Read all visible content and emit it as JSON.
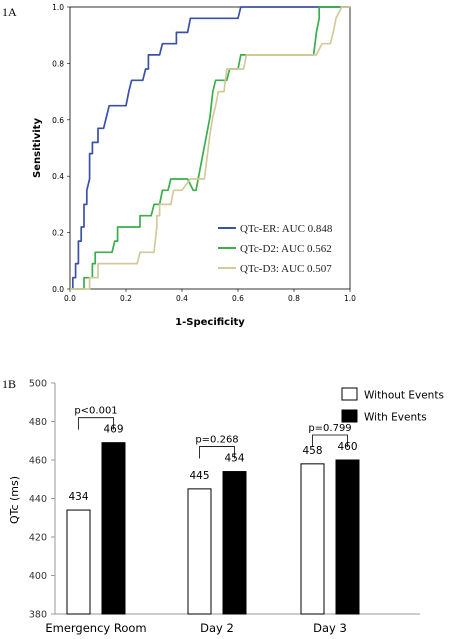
{
  "chart_data": [
    {
      "panel": "1A",
      "type": "line",
      "xlabel": "1-Specificity",
      "ylabel": "Sensitivity",
      "xlim": [
        0,
        1
      ],
      "ylim": [
        0,
        1
      ],
      "xticks": [
        "0.0",
        "0.2",
        "0.4",
        "0.6",
        "0.8",
        "1.0"
      ],
      "yticks": [
        "0.0",
        "0.2",
        "0.4",
        "0.6",
        "0.8",
        "1.0"
      ],
      "legend_position": "bottom-right",
      "series": [
        {
          "name": "QTc-ER: AUC 0.848",
          "color": "#3b50a8",
          "points": [
            [
              0,
              0
            ],
            [
              0.01,
              0
            ],
            [
              0.01,
              0.04
            ],
            [
              0.02,
              0.04
            ],
            [
              0.02,
              0.09
            ],
            [
              0.03,
              0.09
            ],
            [
              0.03,
              0.17
            ],
            [
              0.04,
              0.17
            ],
            [
              0.04,
              0.22
            ],
            [
              0.05,
              0.22
            ],
            [
              0.05,
              0.3
            ],
            [
              0.06,
              0.3
            ],
            [
              0.06,
              0.35
            ],
            [
              0.07,
              0.39
            ],
            [
              0.07,
              0.48
            ],
            [
              0.08,
              0.48
            ],
            [
              0.08,
              0.52
            ],
            [
              0.1,
              0.52
            ],
            [
              0.1,
              0.57
            ],
            [
              0.12,
              0.57
            ],
            [
              0.13,
              0.61
            ],
            [
              0.14,
              0.65
            ],
            [
              0.2,
              0.65
            ],
            [
              0.21,
              0.7
            ],
            [
              0.22,
              0.74
            ],
            [
              0.26,
              0.74
            ],
            [
              0.27,
              0.78
            ],
            [
              0.28,
              0.78
            ],
            [
              0.28,
              0.83
            ],
            [
              0.32,
              0.83
            ],
            [
              0.33,
              0.87
            ],
            [
              0.38,
              0.87
            ],
            [
              0.38,
              0.91
            ],
            [
              0.42,
              0.91
            ],
            [
              0.43,
              0.96
            ],
            [
              0.6,
              0.96
            ],
            [
              0.61,
              1.0
            ],
            [
              1.0,
              1.0
            ]
          ]
        },
        {
          "name": "QTc-D2: AUC 0.562",
          "color": "#3aae4a",
          "points": [
            [
              0,
              0
            ],
            [
              0.05,
              0
            ],
            [
              0.05,
              0.04
            ],
            [
              0.08,
              0.04
            ],
            [
              0.08,
              0.09
            ],
            [
              0.09,
              0.09
            ],
            [
              0.09,
              0.13
            ],
            [
              0.15,
              0.13
            ],
            [
              0.16,
              0.17
            ],
            [
              0.17,
              0.17
            ],
            [
              0.17,
              0.22
            ],
            [
              0.25,
              0.22
            ],
            [
              0.25,
              0.26
            ],
            [
              0.29,
              0.26
            ],
            [
              0.3,
              0.3
            ],
            [
              0.32,
              0.3
            ],
            [
              0.33,
              0.35
            ],
            [
              0.35,
              0.35
            ],
            [
              0.36,
              0.39
            ],
            [
              0.42,
              0.39
            ],
            [
              0.44,
              0.35
            ],
            [
              0.45,
              0.35
            ],
            [
              0.5,
              0.61
            ],
            [
              0.51,
              0.7
            ],
            [
              0.52,
              0.74
            ],
            [
              0.56,
              0.74
            ],
            [
              0.57,
              0.78
            ],
            [
              0.6,
              0.78
            ],
            [
              0.61,
              0.83
            ],
            [
              0.87,
              0.83
            ],
            [
              0.88,
              0.91
            ],
            [
              0.89,
              0.96
            ],
            [
              0.89,
              1.0
            ],
            [
              1.0,
              1.0
            ]
          ]
        },
        {
          "name": "QTc-D3: AUC 0.507",
          "color": "#d4c99a",
          "points": [
            [
              0,
              0
            ],
            [
              0.07,
              0
            ],
            [
              0.07,
              0.04
            ],
            [
              0.1,
              0.04
            ],
            [
              0.1,
              0.09
            ],
            [
              0.24,
              0.09
            ],
            [
              0.25,
              0.13
            ],
            [
              0.3,
              0.13
            ],
            [
              0.31,
              0.22
            ],
            [
              0.31,
              0.26
            ],
            [
              0.32,
              0.26
            ],
            [
              0.32,
              0.3
            ],
            [
              0.36,
              0.3
            ],
            [
              0.37,
              0.35
            ],
            [
              0.4,
              0.35
            ],
            [
              0.43,
              0.39
            ],
            [
              0.48,
              0.39
            ],
            [
              0.5,
              0.55
            ],
            [
              0.51,
              0.61
            ],
            [
              0.52,
              0.65
            ],
            [
              0.53,
              0.7
            ],
            [
              0.55,
              0.7
            ],
            [
              0.56,
              0.78
            ],
            [
              0.62,
              0.78
            ],
            [
              0.63,
              0.83
            ],
            [
              0.88,
              0.83
            ],
            [
              0.9,
              0.87
            ],
            [
              0.93,
              0.87
            ],
            [
              0.94,
              0.91
            ],
            [
              0.95,
              0.96
            ],
            [
              0.97,
              1.0
            ],
            [
              1.0,
              1.0
            ]
          ]
        }
      ]
    },
    {
      "panel": "1B",
      "type": "bar",
      "ylabel": "QTc (ms)",
      "ylim": [
        380,
        500
      ],
      "yticks": [
        "380",
        "400",
        "420",
        "440",
        "460",
        "480",
        "500"
      ],
      "categories": [
        "Emergency Room",
        "Day 2",
        "Day 3"
      ],
      "legend_position": "top-right",
      "series": [
        {
          "name": "Without Events",
          "fill": "#ffffff",
          "values": [
            434,
            445,
            458
          ]
        },
        {
          "name": "With Events",
          "fill": "#000000",
          "values": [
            469,
            454,
            460
          ]
        }
      ],
      "p_values": [
        "p<0.001",
        "p=0.268",
        "p=0.799"
      ]
    }
  ]
}
